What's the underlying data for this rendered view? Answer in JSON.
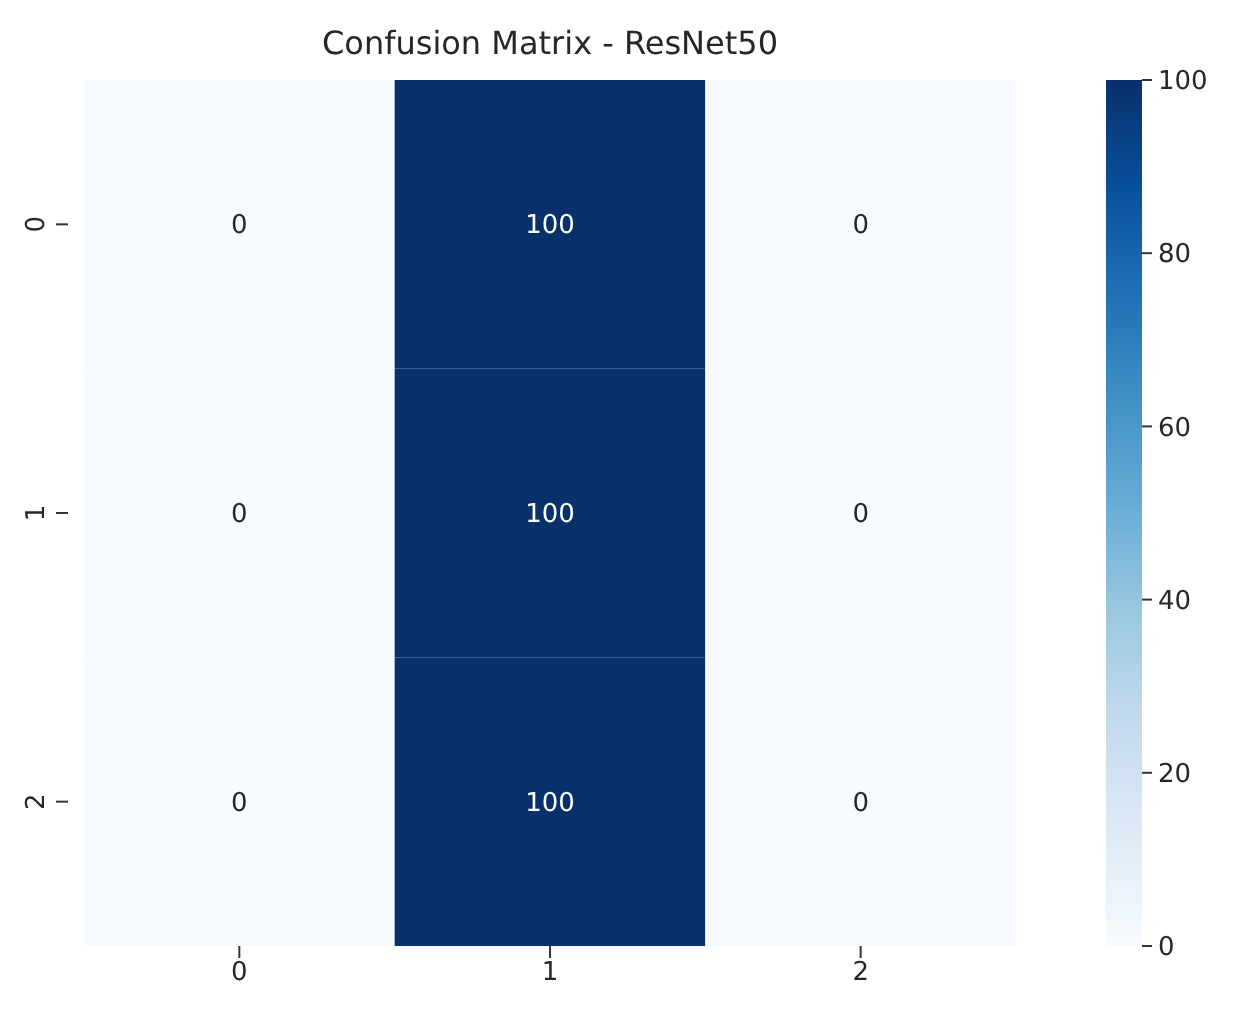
{
  "chart_data": {
    "type": "heatmap",
    "title": "Confusion Matrix - ResNet50",
    "categories": [
      "0",
      "1",
      "2"
    ],
    "y_categories": [
      "0",
      "1",
      "2"
    ],
    "cells": [
      [
        0,
        100,
        0
      ],
      [
        0,
        100,
        0
      ],
      [
        0,
        100,
        0
      ]
    ],
    "data_labels": true,
    "clim": [
      0,
      100
    ],
    "cticks": [
      0,
      20,
      40,
      60,
      80,
      100
    ],
    "grid": false
  }
}
